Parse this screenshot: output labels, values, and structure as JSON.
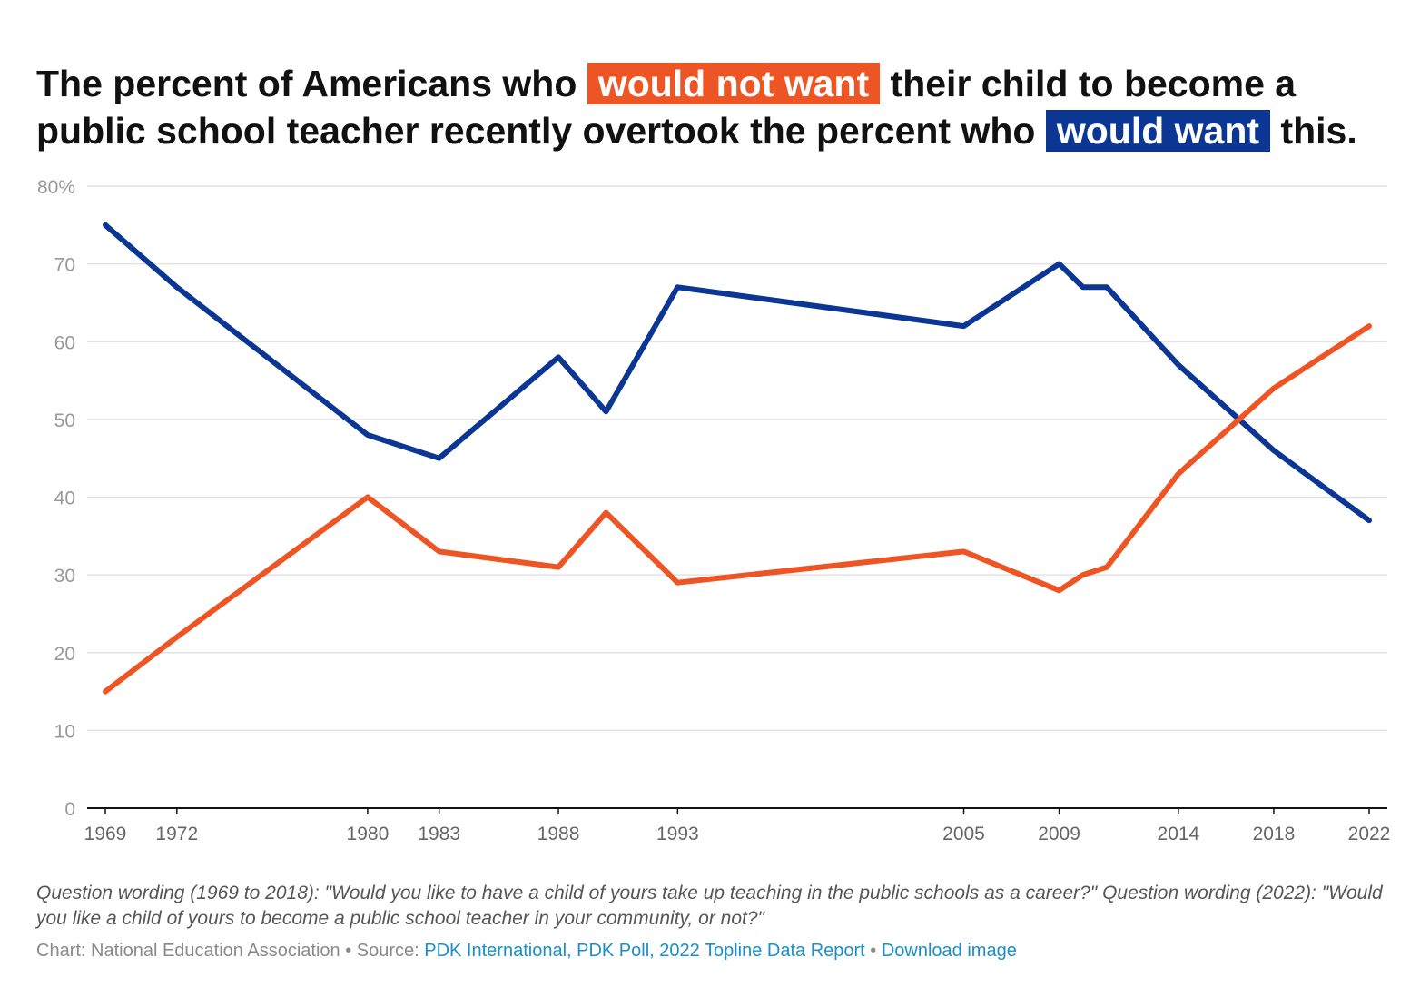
{
  "title": {
    "part1": "The percent of Americans who",
    "highlight1": "would not want",
    "part2": "their child to become a public school teacher recently overtook the percent who",
    "highlight2": "would want",
    "part3": "this."
  },
  "colors": {
    "would_not_want": "#ee5524",
    "would_want": "#0b3694",
    "grid": "#e2e2e2",
    "axis_text": "#999999",
    "link": "#1a8fc9"
  },
  "chart_data": {
    "type": "line",
    "ylim": [
      0,
      80
    ],
    "xlim": [
      1969,
      2022
    ],
    "y_ticks": [
      0,
      10,
      20,
      30,
      40,
      50,
      60,
      70,
      80
    ],
    "y_tick_labels": [
      "0",
      "10",
      "20",
      "30",
      "40",
      "50",
      "60",
      "70",
      "80%"
    ],
    "x_tick_labels": [
      "1969",
      "1972",
      "1980",
      "1983",
      "1988",
      "1993",
      "2005",
      "2009",
      "2014",
      "2018",
      "2022"
    ],
    "grid": true,
    "series": [
      {
        "key": "would_want",
        "color": "#0b3694",
        "points": [
          [
            1969,
            75
          ],
          [
            1972,
            67
          ],
          [
            1980,
            48
          ],
          [
            1983,
            45
          ],
          [
            1988,
            58
          ],
          [
            1990,
            51
          ],
          [
            1993,
            67
          ],
          [
            2005,
            62
          ],
          [
            2009,
            70
          ],
          [
            2010,
            67
          ],
          [
            2011,
            67
          ],
          [
            2014,
            57
          ],
          [
            2018,
            46
          ],
          [
            2022,
            37
          ]
        ]
      },
      {
        "key": "would_not_want",
        "color": "#ee5524",
        "points": [
          [
            1969,
            15
          ],
          [
            1972,
            22
          ],
          [
            1980,
            40
          ],
          [
            1983,
            33
          ],
          [
            1988,
            31
          ],
          [
            1990,
            38
          ],
          [
            1993,
            29
          ],
          [
            2005,
            33
          ],
          [
            2009,
            28
          ],
          [
            2010,
            30
          ],
          [
            2011,
            31
          ],
          [
            2014,
            43
          ],
          [
            2018,
            54
          ],
          [
            2022,
            62
          ]
        ]
      }
    ]
  },
  "note": "Question wording (1969 to 2018): \"Would you like to have a child of yours take up teaching in the public schools as a career?\" Question wording (2022): \"Would you like a child of yours to become a public school teacher in your community, or not?\"",
  "credit": {
    "chart_by": "Chart: National Education Association",
    "separator": " • ",
    "source_label": "Source: ",
    "source_link": "PDK International, PDK Poll, 2022 Topline Data Report",
    "download_link": "Download image"
  }
}
